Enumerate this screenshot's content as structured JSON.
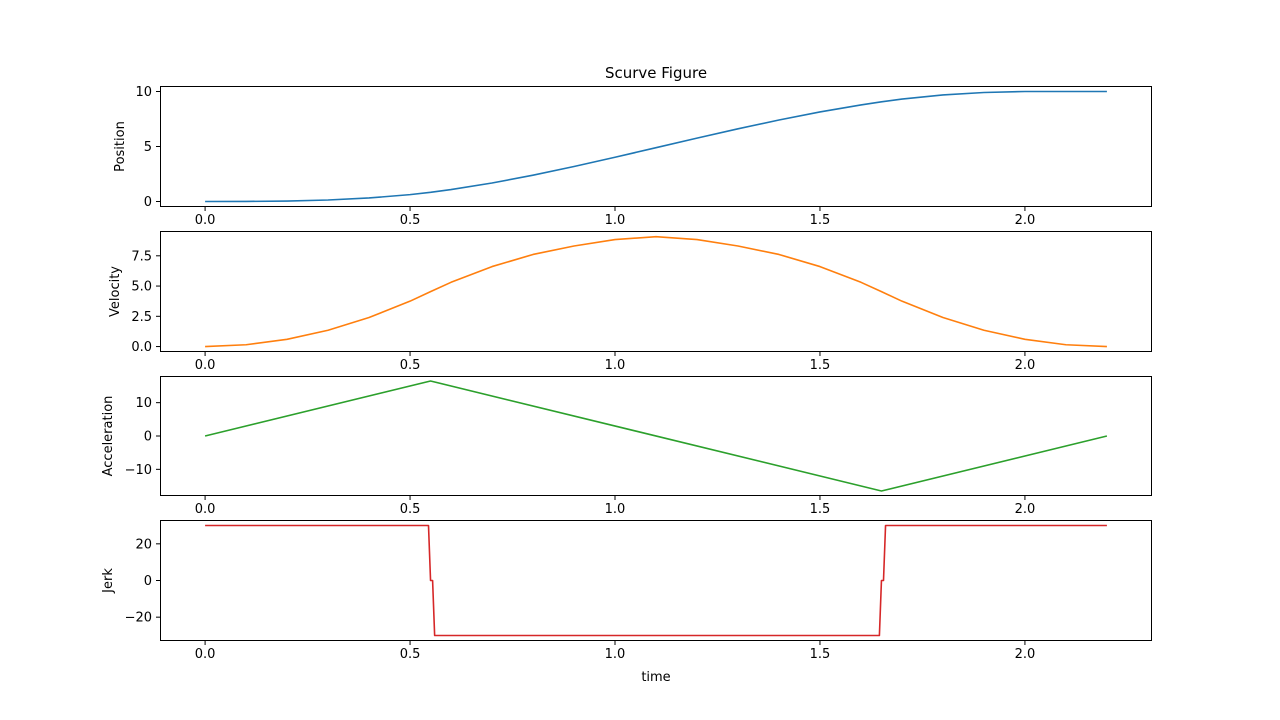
{
  "chart_data": {
    "type": "line",
    "title": "Scurve Figure",
    "xlabel": "time",
    "xlim": [
      -0.11,
      2.31
    ],
    "xticks": [
      0.0,
      0.5,
      1.0,
      1.5,
      2.0
    ],
    "xtick_labels": [
      "0.0",
      "0.5",
      "1.0",
      "1.5",
      "2.0"
    ],
    "grid": false,
    "subplots": [
      {
        "ylabel": "Position",
        "color": "#1f77b4",
        "ylim": [
          -0.5,
          10.5
        ],
        "yticks": [
          0,
          5,
          10
        ],
        "ytick_labels": [
          "0",
          "5",
          "10"
        ],
        "x": [
          0.0,
          0.1,
          0.2,
          0.3,
          0.4,
          0.5,
          0.55,
          0.6,
          0.7,
          0.8,
          0.9,
          1.0,
          1.1,
          1.2,
          1.3,
          1.4,
          1.5,
          1.6,
          1.65,
          1.7,
          1.8,
          1.9,
          2.0,
          2.1,
          2.2
        ],
        "y": [
          0.0,
          0.005,
          0.04,
          0.135,
          0.32,
          0.625,
          0.833,
          1.085,
          1.68,
          2.39,
          3.18,
          4.02,
          4.89,
          5.76,
          6.61,
          7.41,
          8.14,
          8.78,
          9.06,
          9.31,
          9.69,
          9.91,
          10.0,
          10.0,
          10.0
        ]
      },
      {
        "ylabel": "Velocity",
        "color": "#ff7f0e",
        "ylim": [
          -0.45,
          9.55
        ],
        "yticks": [
          0.0,
          2.5,
          5.0,
          7.5
        ],
        "ytick_labels": [
          "0.0",
          "2.5",
          "5.0",
          "7.5"
        ],
        "x": [
          0.0,
          0.1,
          0.2,
          0.3,
          0.4,
          0.5,
          0.55,
          0.6,
          0.7,
          0.8,
          0.9,
          1.0,
          1.1,
          1.2,
          1.3,
          1.4,
          1.5,
          1.6,
          1.65,
          1.7,
          1.8,
          1.9,
          2.0,
          2.1,
          2.2
        ],
        "y": [
          0.0,
          0.15,
          0.6,
          1.35,
          2.4,
          3.75,
          4.54,
          5.31,
          6.61,
          7.61,
          8.31,
          8.84,
          9.08,
          8.84,
          8.31,
          7.61,
          6.61,
          5.31,
          4.54,
          3.75,
          2.4,
          1.35,
          0.6,
          0.15,
          0.0
        ]
      },
      {
        "ylabel": "Acceleration",
        "color": "#2ca02c",
        "ylim": [
          -18.0,
          18.0
        ],
        "yticks": [
          10,
          0,
          -10
        ],
        "ytick_labels": [
          "10",
          "0",
          "−10"
        ],
        "x": [
          0.0,
          0.55,
          1.65,
          2.2
        ],
        "y": [
          0.0,
          16.5,
          -16.5,
          0.0
        ]
      },
      {
        "ylabel": "Jerk",
        "color": "#d62728",
        "ylim": [
          -33.0,
          33.0
        ],
        "yticks": [
          20,
          0,
          -20
        ],
        "ytick_labels": [
          "20",
          "0",
          "−20"
        ],
        "x": [
          0.0,
          0.545,
          0.55,
          0.555,
          0.56,
          1.64,
          1.645,
          1.65,
          1.655,
          1.66,
          2.2
        ],
        "y": [
          30,
          30,
          0,
          0,
          -30,
          -30,
          -30,
          0,
          0,
          30,
          30
        ]
      }
    ]
  }
}
